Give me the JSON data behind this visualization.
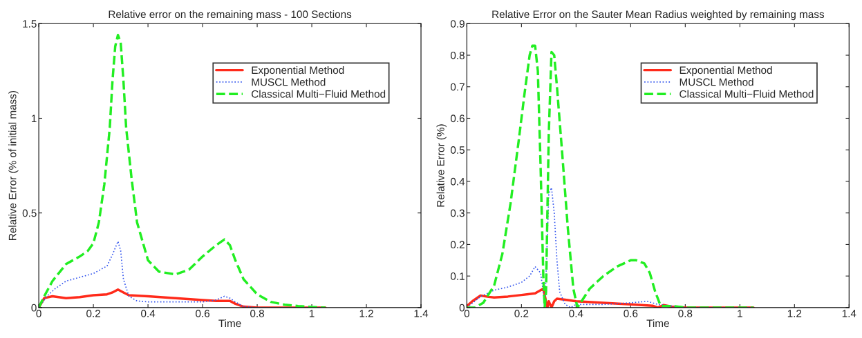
{
  "chart_data": [
    {
      "type": "line",
      "title": "Relative error on the remaining mass - 100 Sections",
      "xlabel": "Time",
      "ylabel": "Relative Error (% of initial mass)",
      "xlim": [
        0,
        1.4
      ],
      "xticks": [
        0,
        0.2,
        0.4,
        0.6,
        0.8,
        1,
        1.2,
        1.4
      ],
      "ylim": [
        0,
        1.5
      ],
      "yticks": [
        0,
        0.5,
        1,
        1.5
      ],
      "legend": "top right",
      "grid": false,
      "series": [
        {
          "name": "Exponential Method",
          "color": "#ff2a1a",
          "line_style": "solid",
          "x": [
            0,
            0.02,
            0.05,
            0.1,
            0.15,
            0.2,
            0.25,
            0.27,
            0.29,
            0.31,
            0.33,
            0.4,
            0.5,
            0.6,
            0.65,
            0.7,
            0.72,
            0.75,
            0.8,
            1.05
          ],
          "values": [
            0,
            0.05,
            0.06,
            0.05,
            0.055,
            0.065,
            0.07,
            0.08,
            0.095,
            0.08,
            0.065,
            0.06,
            0.05,
            0.04,
            0.035,
            0.035,
            0.02,
            0.005,
            0,
            0
          ]
        },
        {
          "name": "MUSCL Method",
          "color": "#3355ee",
          "line_style": "dotted",
          "x": [
            0,
            0.03,
            0.06,
            0.1,
            0.15,
            0.2,
            0.25,
            0.27,
            0.29,
            0.3,
            0.31,
            0.33,
            0.36,
            0.4,
            0.5,
            0.6,
            0.65,
            0.68,
            0.7,
            0.72,
            0.75,
            0.8,
            1.05
          ],
          "values": [
            0,
            0.06,
            0.1,
            0.14,
            0.16,
            0.18,
            0.22,
            0.28,
            0.35,
            0.3,
            0.15,
            0.06,
            0.035,
            0.03,
            0.03,
            0.03,
            0.04,
            0.06,
            0.05,
            0.03,
            0.005,
            0,
            0
          ]
        },
        {
          "name": "Classical Multi−Fluid Method",
          "color": "#22ee22",
          "line_style": "dashed",
          "x": [
            0,
            0.02,
            0.05,
            0.1,
            0.15,
            0.18,
            0.2,
            0.22,
            0.24,
            0.26,
            0.27,
            0.28,
            0.29,
            0.3,
            0.31,
            0.32,
            0.34,
            0.36,
            0.4,
            0.44,
            0.5,
            0.55,
            0.6,
            0.65,
            0.68,
            0.7,
            0.72,
            0.75,
            0.8,
            0.85,
            0.9,
            0.95,
            1.0,
            1.05
          ],
          "values": [
            0,
            0.06,
            0.14,
            0.23,
            0.27,
            0.3,
            0.34,
            0.45,
            0.65,
            0.95,
            1.2,
            1.38,
            1.44,
            1.4,
            1.2,
            0.95,
            0.68,
            0.45,
            0.25,
            0.19,
            0.175,
            0.2,
            0.27,
            0.33,
            0.36,
            0.33,
            0.25,
            0.15,
            0.07,
            0.03,
            0.015,
            0.008,
            0.003,
            0
          ]
        }
      ]
    },
    {
      "type": "line",
      "title": "Relative Error on the Sauter Mean Radius weighted by remaining mass",
      "xlabel": "Time",
      "ylabel": "Relative Error (%)",
      "xlim": [
        0,
        1.4
      ],
      "xticks": [
        0,
        0.2,
        0.4,
        0.6,
        0.8,
        1,
        1.2,
        1.4
      ],
      "ylim": [
        0,
        0.9
      ],
      "yticks": [
        0,
        0.1,
        0.2,
        0.3,
        0.4,
        0.5,
        0.6,
        0.7,
        0.8,
        0.9
      ],
      "legend": "top right",
      "grid": false,
      "series": [
        {
          "name": "Exponential Method",
          "color": "#ff2a1a",
          "line_style": "solid",
          "x": [
            0,
            0.02,
            0.05,
            0.08,
            0.1,
            0.15,
            0.2,
            0.25,
            0.27,
            0.28,
            0.29,
            0.295,
            0.3,
            0.31,
            0.32,
            0.33,
            0.36,
            0.4,
            0.5,
            0.6,
            0.68,
            0.7,
            0.72,
            0.75,
            0.8,
            1.05
          ],
          "values": [
            0.005,
            0.02,
            0.038,
            0.034,
            0.032,
            0.035,
            0.04,
            0.045,
            0.055,
            0.06,
            0.02,
            0,
            0.02,
            0,
            0.02,
            0.028,
            0.025,
            0.02,
            0.015,
            0.01,
            0.006,
            0,
            0.008,
            0.003,
            0,
            0
          ]
        },
        {
          "name": "MUSCL Method",
          "color": "#3355ee",
          "line_style": "dotted",
          "x": [
            0,
            0.05,
            0.1,
            0.15,
            0.2,
            0.23,
            0.25,
            0.27,
            0.28,
            0.285,
            0.29,
            0.3,
            0.31,
            0.32,
            0.33,
            0.34,
            0.36,
            0.38,
            0.4,
            0.5,
            0.6,
            0.66,
            0.7,
            0.75,
            0.8,
            1.05
          ],
          "values": [
            0,
            0.035,
            0.055,
            0.065,
            0.08,
            0.1,
            0.13,
            0.11,
            0.05,
            0,
            0.1,
            0.36,
            0.38,
            0.3,
            0.15,
            0.05,
            0.01,
            0,
            0.01,
            0.01,
            0.015,
            0.02,
            0.01,
            0.005,
            0,
            0
          ]
        },
        {
          "name": "Classical Multi−Fluid Method",
          "color": "#22ee22",
          "line_style": "dashed",
          "x": [
            0,
            0.03,
            0.06,
            0.1,
            0.13,
            0.16,
            0.19,
            0.21,
            0.23,
            0.24,
            0.25,
            0.26,
            0.27,
            0.28,
            0.285,
            0.29,
            0.3,
            0.31,
            0.32,
            0.33,
            0.35,
            0.37,
            0.39,
            0.405,
            0.42,
            0.45,
            0.5,
            0.55,
            0.6,
            0.62,
            0.65,
            0.67,
            0.69,
            0.71,
            0.75,
            0.8,
            1.05
          ],
          "values": [
            0,
            0,
            0.015,
            0.07,
            0.17,
            0.33,
            0.53,
            0.67,
            0.8,
            0.83,
            0.83,
            0.75,
            0.45,
            0.1,
            0,
            0.05,
            0.55,
            0.81,
            0.8,
            0.7,
            0.48,
            0.25,
            0.06,
            0,
            0.02,
            0.06,
            0.1,
            0.13,
            0.15,
            0.15,
            0.14,
            0.11,
            0.05,
            0.005,
            0.005,
            0,
            0
          ]
        }
      ]
    }
  ]
}
